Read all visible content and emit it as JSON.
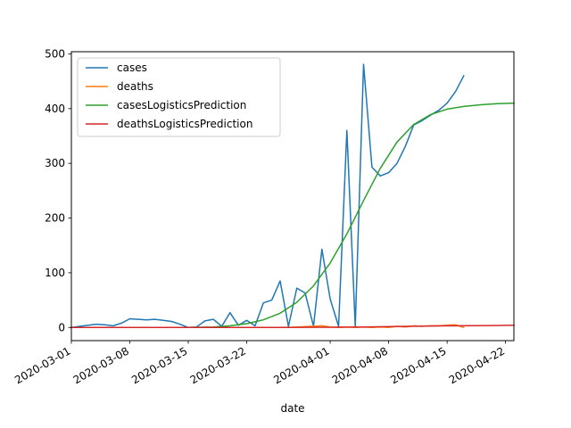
{
  "chart_data": {
    "type": "line",
    "title": "",
    "xlabel": "date",
    "ylabel": "",
    "x_axis_type": "date",
    "xlim": [
      "2020-03-01",
      "2020-04-23"
    ],
    "ylim": [
      -24,
      504
    ],
    "y_ticks": [
      0,
      100,
      200,
      300,
      400,
      500
    ],
    "x_ticks": [
      "2020-03-01",
      "2020-03-08",
      "2020-03-15",
      "2020-03-22",
      "2020-04-01",
      "2020-04-08",
      "2020-04-15",
      "2020-04-22"
    ],
    "x_tick_rotation": 30,
    "grid": false,
    "legend_position": "upper left",
    "series": [
      {
        "name": "cases",
        "color": "#1f77b4",
        "x": [
          "2020-03-01",
          "2020-03-02",
          "2020-03-03",
          "2020-03-04",
          "2020-03-05",
          "2020-03-06",
          "2020-03-07",
          "2020-03-08",
          "2020-03-09",
          "2020-03-10",
          "2020-03-11",
          "2020-03-12",
          "2020-03-13",
          "2020-03-14",
          "2020-03-15",
          "2020-03-16",
          "2020-03-17",
          "2020-03-18",
          "2020-03-19",
          "2020-03-20",
          "2020-03-21",
          "2020-03-22",
          "2020-03-23",
          "2020-03-24",
          "2020-03-25",
          "2020-03-26",
          "2020-03-27",
          "2020-03-28",
          "2020-03-29",
          "2020-03-30",
          "2020-03-31",
          "2020-04-01",
          "2020-04-02",
          "2020-04-03",
          "2020-04-04",
          "2020-04-05",
          "2020-04-06",
          "2020-04-07",
          "2020-04-08",
          "2020-04-09",
          "2020-04-10",
          "2020-04-11",
          "2020-04-12",
          "2020-04-13",
          "2020-04-14",
          "2020-04-15",
          "2020-04-16",
          "2020-04-17"
        ],
        "y": [
          0,
          2,
          4,
          6,
          5,
          3,
          8,
          16,
          15,
          14,
          15,
          13,
          11,
          6,
          0,
          1,
          12,
          15,
          2,
          27,
          4,
          13,
          3,
          45,
          50,
          85,
          2,
          72,
          63,
          2,
          143,
          52,
          2,
          360,
          2,
          481,
          293,
          277,
          283,
          300,
          331,
          370,
          378,
          388,
          397,
          410,
          431,
          460
        ]
      },
      {
        "name": "deaths",
        "color": "#ff7f0e",
        "x": [
          "2020-03-01",
          "2020-03-08",
          "2020-03-15",
          "2020-03-22",
          "2020-03-27",
          "2020-03-31",
          "2020-04-01",
          "2020-04-02",
          "2020-04-03",
          "2020-04-04",
          "2020-04-05",
          "2020-04-06",
          "2020-04-07",
          "2020-04-08",
          "2020-04-09",
          "2020-04-10",
          "2020-04-11",
          "2020-04-12",
          "2020-04-13",
          "2020-04-14",
          "2020-04-15",
          "2020-04-16",
          "2020-04-17"
        ],
        "y": [
          0,
          0,
          0,
          0,
          0,
          3,
          1,
          0,
          1,
          0,
          1,
          0,
          1,
          0,
          2,
          1,
          3,
          2,
          3,
          3,
          4,
          5,
          0
        ]
      },
      {
        "name": "casesLogisticsPrediction",
        "color": "#2ca02c",
        "x": [
          "2020-03-01",
          "2020-03-05",
          "2020-03-10",
          "2020-03-15",
          "2020-03-18",
          "2020-03-20",
          "2020-03-22",
          "2020-03-24",
          "2020-03-26",
          "2020-03-28",
          "2020-03-30",
          "2020-04-01",
          "2020-04-03",
          "2020-04-05",
          "2020-04-07",
          "2020-04-09",
          "2020-04-11",
          "2020-04-13",
          "2020-04-15",
          "2020-04-17",
          "2020-04-19",
          "2020-04-21",
          "2020-04-23"
        ],
        "y": [
          0,
          0,
          0,
          0,
          1,
          3,
          7,
          14,
          26,
          46,
          76,
          118,
          171,
          232,
          291,
          339,
          371,
          389,
          399,
          404,
          407,
          409,
          410
        ]
      },
      {
        "name": "deathsLogisticsPrediction",
        "color": "#d62728",
        "x": [
          "2020-03-01",
          "2020-03-15",
          "2020-03-25",
          "2020-04-01",
          "2020-04-05",
          "2020-04-10",
          "2020-04-15",
          "2020-04-20",
          "2020-04-23"
        ],
        "y": [
          0,
          0,
          0,
          0.5,
          1,
          2,
          3,
          3.5,
          4
        ]
      }
    ]
  }
}
